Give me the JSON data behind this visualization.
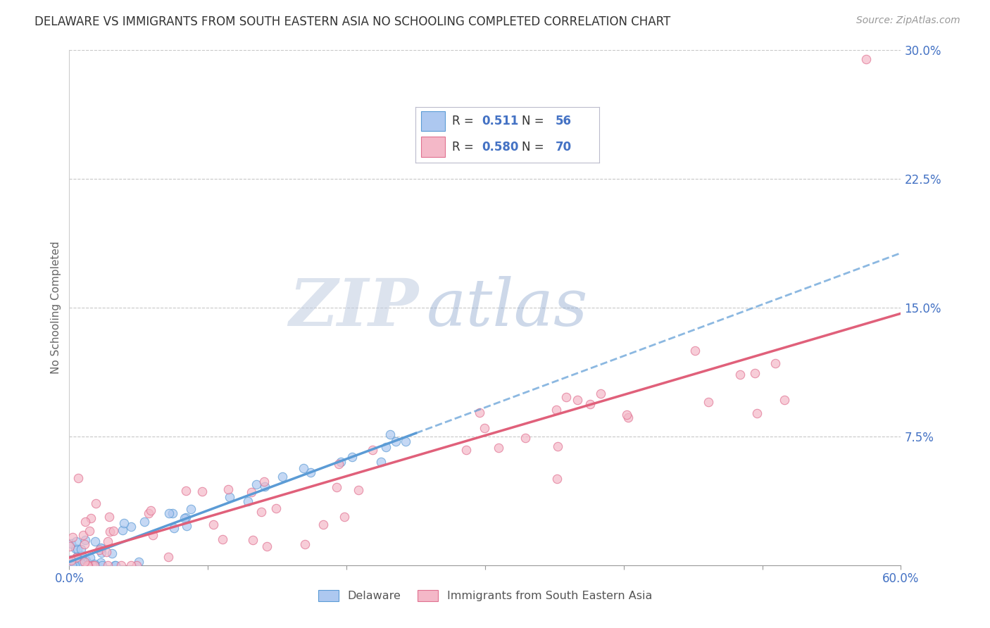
{
  "title": "DELAWARE VS IMMIGRANTS FROM SOUTH EASTERN ASIA NO SCHOOLING COMPLETED CORRELATION CHART",
  "source": "Source: ZipAtlas.com",
  "ylabel": "No Schooling Completed",
  "xmin": 0.0,
  "xmax": 0.6,
  "ymin": 0.0,
  "ymax": 0.3,
  "legend_r1": "0.511",
  "legend_n1": "56",
  "legend_r2": "0.580",
  "legend_n2": "70",
  "color_delaware_fill": "#adc8f0",
  "color_delaware_edge": "#5b9bd5",
  "color_immigrants_fill": "#f4b8c8",
  "color_immigrants_edge": "#e07090",
  "color_delaware_line": "#5b9bd5",
  "color_immigrants_line": "#e0607a",
  "watermark_zip": "ZIP",
  "watermark_atlas": "atlas",
  "background_color": "#ffffff",
  "grid_color": "#c8c8c8",
  "title_color": "#333333",
  "tick_label_color": "#4472c4",
  "source_color": "#999999",
  "legend_box_color": "#e8eef8",
  "legend_text_color": "#333333",
  "legend_value_color": "#4472c4"
}
